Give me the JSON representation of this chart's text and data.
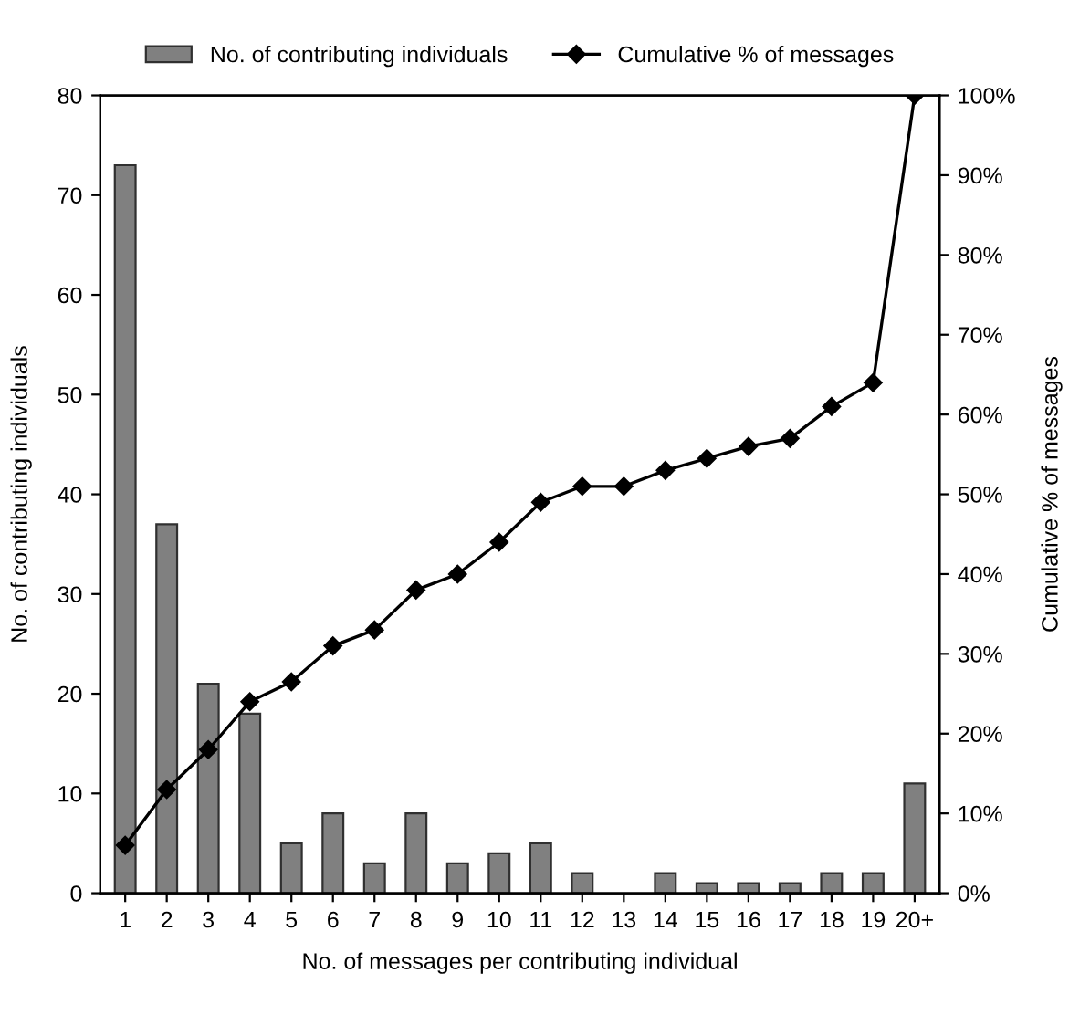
{
  "chart_data": {
    "type": "bar",
    "xlabel": "No. of messages per contributing individual",
    "ylabel": "No. of contributing individuals",
    "y2label": "Cumulative % of messages",
    "categories": [
      "1",
      "2",
      "3",
      "4",
      "5",
      "6",
      "7",
      "8",
      "9",
      "10",
      "11",
      "12",
      "13",
      "14",
      "15",
      "16",
      "17",
      "18",
      "19",
      "20+"
    ],
    "series": [
      {
        "name": "No. of contributing individuals",
        "color": "#808080",
        "values": [
          73,
          37,
          21,
          18,
          5,
          8,
          3,
          8,
          3,
          4,
          5,
          2,
          0,
          2,
          1,
          1,
          1,
          2,
          2,
          11
        ]
      },
      {
        "name": "Cumulative % of messages",
        "type": "line",
        "axis": "y2",
        "color": "#000000",
        "marker": "diamond",
        "line_style": "solid",
        "values": [
          6,
          13,
          18,
          24,
          26.5,
          31,
          33,
          38,
          40,
          44,
          49,
          51,
          51,
          53,
          54.5,
          56,
          57,
          61,
          64,
          100
        ]
      }
    ],
    "ylim": [
      0,
      80
    ],
    "yticks": [
      0,
      10,
      20,
      30,
      40,
      50,
      60,
      70,
      80
    ],
    "y2lim": [
      0,
      100
    ],
    "y2ticks": [
      {
        "value": 0,
        "label": "0%"
      },
      {
        "value": 10,
        "label": "10%"
      },
      {
        "value": 20,
        "label": "20%"
      },
      {
        "value": 30,
        "label": "30%"
      },
      {
        "value": 40,
        "label": "40%"
      },
      {
        "value": 50,
        "label": "50%"
      },
      {
        "value": 60,
        "label": "60%"
      },
      {
        "value": 70,
        "label": "70%"
      },
      {
        "value": 80,
        "label": "80%"
      },
      {
        "value": 90,
        "label": "90%"
      },
      {
        "value": 100,
        "label": "100%"
      }
    ],
    "grid": false,
    "legend": "top"
  }
}
